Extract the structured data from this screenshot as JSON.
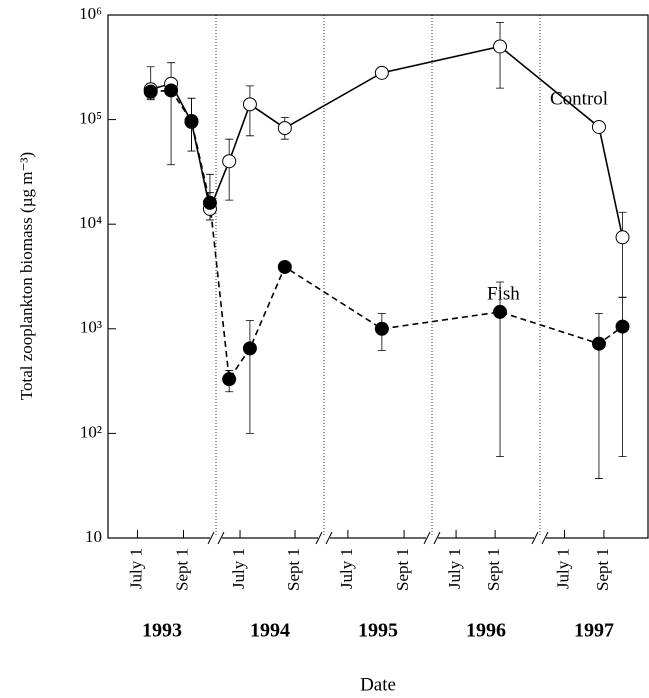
{
  "chart_data": {
    "type": "line",
    "log_y": true,
    "y_label": "Total zooplankton biomass (µg m⁻³)",
    "x_label": "Date",
    "ylim": [
      10,
      1000000
    ],
    "yticks": [
      10,
      {
        "value": 100,
        "label": "10²"
      },
      {
        "value": 1000,
        "label": "10³"
      },
      {
        "value": 10000,
        "label": "10⁴"
      },
      {
        "value": 100000,
        "label": "10⁵"
      },
      {
        "value": 1000000,
        "label": "10⁶"
      }
    ],
    "panels": [
      {
        "year": "1993",
        "xlim": [
          1993.393,
          1993.785
        ],
        "xticks": [
          {
            "value": 1993.5,
            "label": "July 1"
          },
          {
            "value": 1993.667,
            "label": "Sept 1"
          }
        ]
      },
      {
        "year": "1994",
        "xlim": [
          1994.427,
          1994.755
        ],
        "xticks": [
          {
            "value": 1994.5,
            "label": "July 1"
          },
          {
            "value": 1994.667,
            "label": "Sept 1"
          }
        ]
      },
      {
        "year": "1995",
        "xlim": [
          1995.429,
          1995.75
        ],
        "xticks": [
          {
            "value": 1995.5,
            "label": "July 1"
          },
          {
            "value": 1995.667,
            "label": "Sept 1"
          }
        ]
      },
      {
        "year": "1996",
        "xlim": [
          1996.397,
          1996.859
        ],
        "xticks": [
          {
            "value": 1996.5,
            "label": "July 1"
          },
          {
            "value": 1996.667,
            "label": "Sept 1"
          }
        ]
      },
      {
        "year": "1997",
        "xlim": [
          1997.396,
          1997.854
        ],
        "xticks": [
          {
            "value": 1997.5,
            "label": "July 1"
          },
          {
            "value": 1997.667,
            "label": "Sept 1"
          }
        ]
      }
    ],
    "series": [
      {
        "name": "Control",
        "color": "#000000",
        "dashed": false,
        "filled": false,
        "x": [
          1993.548,
          1993.622,
          1993.696,
          1993.763,
          1994.467,
          1994.53,
          1994.636,
          1995.601,
          1996.688,
          1997.646,
          1997.746
        ],
        "values": [
          195000,
          220000,
          95000,
          14000,
          40000,
          140000,
          83000,
          280000,
          500000,
          85000,
          7500
        ],
        "error_low": [
          160000,
          37000,
          50000,
          11000,
          17000,
          70000,
          65000,
          null,
          200000,
          null,
          2000
        ],
        "error_high": [
          320000,
          350000,
          160000,
          30000,
          65000,
          210000,
          105000,
          null,
          850000,
          null,
          13000
        ]
      },
      {
        "name": "Fish",
        "color": "#000000",
        "dashed": true,
        "filled": true,
        "x": [
          1993.548,
          1993.622,
          1993.696,
          1993.763,
          1994.467,
          1994.53,
          1994.636,
          1995.601,
          1996.688,
          1997.646,
          1997.746
        ],
        "values": [
          185000,
          190000,
          97000,
          16000,
          330,
          650,
          3900,
          1000,
          1450,
          720,
          1050
        ],
        "error_low": [
          155000,
          null,
          50000,
          11000,
          250,
          100,
          null,
          620,
          60,
          37,
          60
        ],
        "error_high": [
          220000,
          null,
          160000,
          20000,
          400,
          1200,
          null,
          1400,
          2800,
          1400,
          2000
        ]
      }
    ]
  }
}
